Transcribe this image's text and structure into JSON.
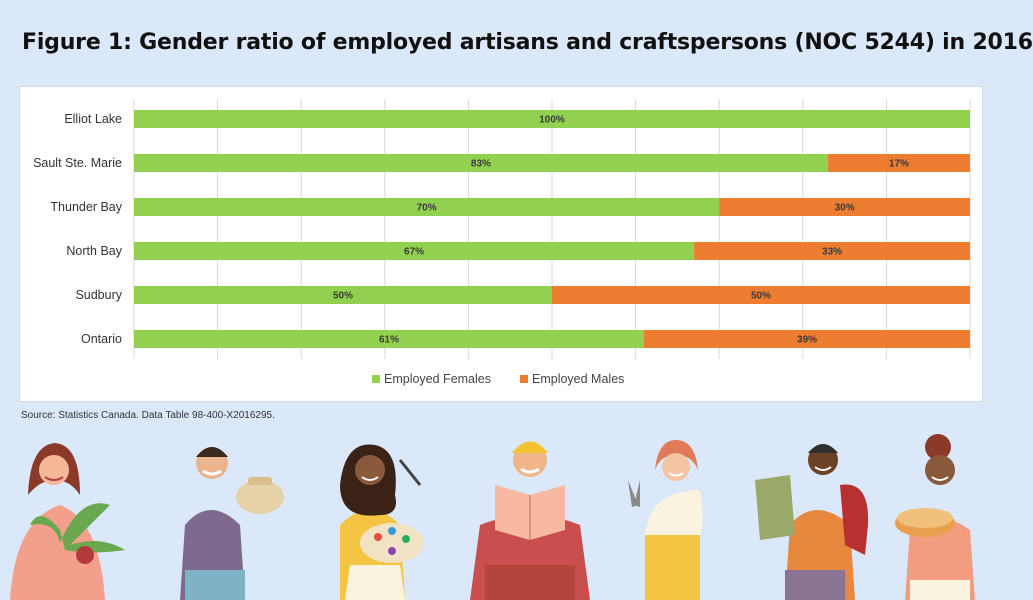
{
  "title": "Figure 1: Gender ratio of employed artisans and craftspersons (NOC 5244) in 2016",
  "source": "Source: Statistics Canada. Data Table 98-400-X2016295.",
  "colors": {
    "females": "#92d050",
    "males": "#ed7d31",
    "grid": "#d9d9d9"
  },
  "chart_data": {
    "type": "bar",
    "orientation": "horizontal",
    "stacked": "percent",
    "categories": [
      "Elliot Lake",
      "Sault Ste. Marie",
      "Thunder Bay",
      "North Bay",
      "Sudbury",
      "Ontario"
    ],
    "series": [
      {
        "name": "Employed Females",
        "values": [
          100,
          83,
          70,
          67,
          50,
          61
        ],
        "labels": [
          "100%",
          "83%",
          "70%",
          "67%",
          "50%",
          "61%"
        ]
      },
      {
        "name": "Employed Males",
        "values": [
          0,
          17,
          30,
          33,
          50,
          39
        ],
        "labels": [
          "",
          "17%",
          "30%",
          "33%",
          "50%",
          "39%"
        ]
      }
    ],
    "xlim": [
      0,
      100
    ],
    "grid": true,
    "legend": "bottom"
  },
  "illustration": {
    "figures": [
      "woman-with-plant",
      "man-with-pottery",
      "woman-painter-with-palette",
      "man-reading-book",
      "woman-with-pliers",
      "man-with-weaving",
      "woman-with-pie"
    ]
  }
}
